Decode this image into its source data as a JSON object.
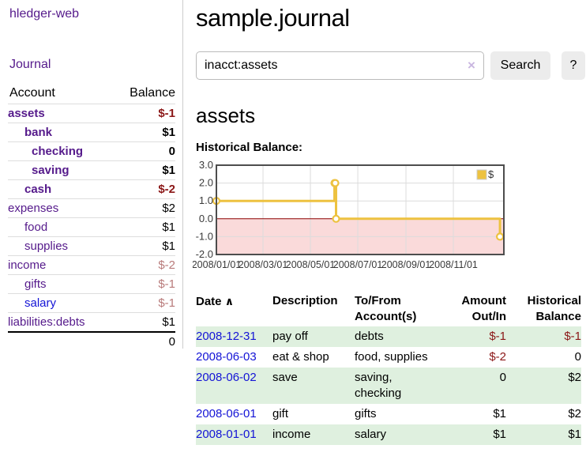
{
  "app": {
    "title": "hledger-web"
  },
  "nav": {
    "journal": "Journal"
  },
  "sidebar": {
    "table": {
      "headers": [
        "Account",
        "Balance"
      ],
      "rows": [
        {
          "name": "assets",
          "indent": 1,
          "emph": true,
          "visited": true,
          "balance": "$-1",
          "balance_style": "neg"
        },
        {
          "name": "bank",
          "indent": 2,
          "emph": true,
          "visited": true,
          "balance": "$1",
          "balance_style": "pos"
        },
        {
          "name": "checking",
          "indent": 3,
          "emph": true,
          "visited": true,
          "balance": "0",
          "balance_style": "pos"
        },
        {
          "name": "saving",
          "indent": 3,
          "emph": true,
          "visited": true,
          "balance": "$1",
          "balance_style": "pos"
        },
        {
          "name": "cash",
          "indent": 2,
          "emph": true,
          "visited": true,
          "balance": "$-2",
          "balance_style": "neg"
        },
        {
          "name": "expenses",
          "indent": 1,
          "emph": false,
          "visited": true,
          "balance": "$2",
          "balance_style": "pos"
        },
        {
          "name": "food",
          "indent": 2,
          "emph": false,
          "visited": true,
          "balance": "$1",
          "balance_style": "pos"
        },
        {
          "name": "supplies",
          "indent": 2,
          "emph": false,
          "visited": true,
          "balance": "$1",
          "balance_style": "pos"
        },
        {
          "name": "income",
          "indent": 1,
          "emph": false,
          "visited": true,
          "balance": "$-2",
          "balance_style": "dimneg"
        },
        {
          "name": "gifts",
          "indent": 2,
          "emph": false,
          "visited": true,
          "balance": "$-1",
          "balance_style": "dimneg"
        },
        {
          "name": "salary",
          "indent": 2,
          "emph": false,
          "visited": false,
          "balance": "$-1",
          "balance_style": "dimneg"
        },
        {
          "name": "liabilities:debts",
          "indent": 1,
          "emph": false,
          "visited": true,
          "balance": "$1",
          "balance_style": "pos"
        }
      ],
      "total": "0"
    }
  },
  "header": {
    "title": "sample.journal"
  },
  "search": {
    "value": "inacct:assets",
    "clear_icon": "×",
    "button_label": "Search",
    "help_label": "?"
  },
  "account_page": {
    "title": "assets",
    "chart_label": "Historical Balance:"
  },
  "chart_data": {
    "type": "line",
    "step": true,
    "title": "Historical Balance:",
    "series": [
      {
        "name": "$",
        "color": "#edc240",
        "points": [
          {
            "date": "2008-01-01",
            "value": 1
          },
          {
            "date": "2008-06-01",
            "value": 2
          },
          {
            "date": "2008-06-02",
            "value": 2
          },
          {
            "date": "2008-06-03",
            "value": 0
          },
          {
            "date": "2008-12-31",
            "value": -1
          }
        ]
      }
    ],
    "ylim": [
      -2,
      3
    ],
    "yticks": [
      3,
      2,
      1,
      0,
      -1,
      -2
    ],
    "xlim": [
      "2008-01-01",
      "2009-01-05"
    ],
    "xticks": [
      {
        "date": "2008-01-01",
        "label": "2008/01/01"
      },
      {
        "date": "2008-03-01",
        "label": "2008/03/01"
      },
      {
        "date": "2008-05-01",
        "label": "2008/05/01"
      },
      {
        "date": "2008-07-01",
        "label": "2008/07/01"
      },
      {
        "date": "2008-09-01",
        "label": "2008/09/01"
      },
      {
        "date": "2008-11-01",
        "label": "2008/11/01"
      }
    ],
    "legend": {
      "label": "$",
      "position": "top-right"
    },
    "grid": true,
    "colors": {
      "negative_region": "#fadada",
      "zero_line": "#8b0000",
      "grid_line": "#dcdcdc",
      "border": "#4d4d4d",
      "marker_fill": "#ffffff"
    }
  },
  "transactions": {
    "sort_indicator": "∧",
    "headers": [
      "Date",
      "Description",
      "To/From\nAccount(s)",
      "Amount\nOut/In",
      "Historical\nBalance"
    ],
    "rows": [
      {
        "date": "2008-12-31",
        "description": "pay off",
        "accounts": "debts",
        "amount": "$-1",
        "amount_neg": true,
        "balance": "$-1",
        "balance_neg": true,
        "green": true
      },
      {
        "date": "2008-06-03",
        "description": "eat & shop",
        "accounts": "food, supplies",
        "amount": "$-2",
        "amount_neg": true,
        "balance": "0",
        "balance_neg": false,
        "green": false
      },
      {
        "date": "2008-06-02",
        "description": "save",
        "accounts": "saving,\nchecking",
        "amount": "0",
        "amount_neg": false,
        "balance": "$2",
        "balance_neg": false,
        "green": true
      },
      {
        "date": "2008-06-01",
        "description": "gift",
        "accounts": "gifts",
        "amount": "$1",
        "amount_neg": false,
        "balance": "$2",
        "balance_neg": false,
        "green": false
      },
      {
        "date": "2008-01-01",
        "description": "income",
        "accounts": "salary",
        "amount": "$1",
        "amount_neg": false,
        "balance": "$1",
        "balance_neg": false,
        "green": true
      }
    ]
  }
}
